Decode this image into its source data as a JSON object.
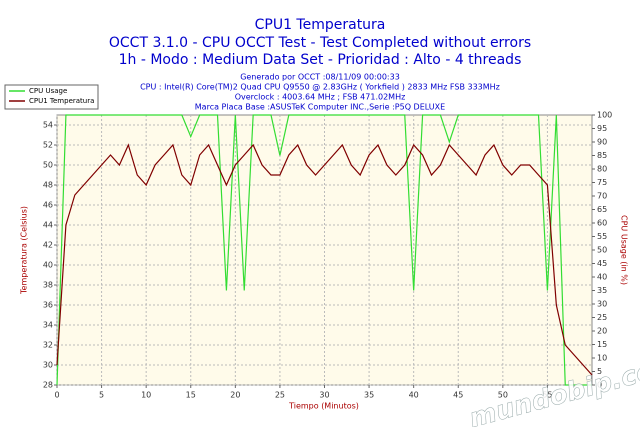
{
  "chart_data": {
    "type": "line",
    "title": "CPU1 Temperatura",
    "subtitle": [
      "OCCT 3.1.0 - CPU OCCT Test - Test Completed without errors",
      "1h - Modo : Medium Data Set - Prioridad : Alto - 4 threads"
    ],
    "info": [
      "Generado por OCCT :08/11/09 00:00:33",
      "CPU : Intel(R) Core(TM)2 Quad CPU Q9550 @ 2.83GHz ( Yorkfield ) 2833 MHz FSB 333MHz",
      "Overclock : 4003.64 MHz ; FSB 471.02MHz",
      "Marca Placa Base :ASUSTeK Computer INC.,Serie :P5Q DELUXE"
    ],
    "x_label": "Tiempo (Minutos)",
    "y_label": "Temperatura (Celsius)",
    "y2_label": "CPU Usage (in %)",
    "watermark": "mundobip.com",
    "x": [
      0,
      1,
      2,
      3,
      4,
      5,
      6,
      7,
      8,
      9,
      10,
      11,
      12,
      13,
      14,
      15,
      16,
      17,
      18,
      19,
      20,
      21,
      22,
      23,
      24,
      25,
      26,
      27,
      28,
      29,
      30,
      31,
      32,
      33,
      34,
      35,
      36,
      37,
      38,
      39,
      40,
      41,
      42,
      43,
      44,
      45,
      46,
      47,
      48,
      49,
      50,
      51,
      52,
      53,
      54,
      55,
      56,
      57,
      58,
      59,
      60
    ],
    "series": [
      {
        "name": "CPU Usage",
        "color": "#33dd33",
        "axis": "y2",
        "values": [
          0,
          100,
          100,
          100,
          100,
          100,
          100,
          100,
          100,
          100,
          100,
          100,
          100,
          100,
          100,
          92,
          100,
          100,
          100,
          35,
          100,
          35,
          100,
          100,
          100,
          85,
          100,
          100,
          100,
          100,
          100,
          100,
          100,
          100,
          100,
          100,
          100,
          100,
          100,
          100,
          35,
          100,
          100,
          100,
          90,
          100,
          100,
          100,
          100,
          100,
          100,
          100,
          100,
          100,
          100,
          35,
          100,
          0,
          0,
          0,
          0
        ]
      },
      {
        "name": "CPU1 Temperatura",
        "color": "#800000",
        "values": [
          30,
          44,
          47,
          48,
          49,
          50,
          51,
          50,
          52,
          49,
          48,
          50,
          51,
          52,
          49,
          48,
          51,
          52,
          50,
          48,
          50,
          51,
          52,
          50,
          49,
          49,
          51,
          52,
          50,
          49,
          50,
          51,
          52,
          50,
          49,
          51,
          52,
          50,
          49,
          50,
          52,
          51,
          49,
          50,
          52,
          51,
          50,
          49,
          51,
          52,
          50,
          49,
          50,
          50,
          49,
          48,
          36,
          32,
          31,
          30,
          29
        ]
      }
    ],
    "xlim": [
      0,
      60
    ],
    "xticks": [
      0,
      5,
      10,
      15,
      20,
      25,
      30,
      35,
      40,
      45,
      50,
      55
    ],
    "ylim": [
      28,
      55
    ],
    "yticks": [
      28,
      30,
      32,
      34,
      36,
      38,
      40,
      42,
      44,
      46,
      48,
      50,
      52,
      54
    ],
    "y2lim": [
      0,
      100
    ],
    "y2ticks": [
      0,
      5,
      10,
      15,
      20,
      25,
      30,
      35,
      40,
      45,
      50,
      55,
      60,
      65,
      70,
      75,
      80,
      85,
      90,
      95,
      100
    ],
    "grid": true,
    "legend": "top-left"
  }
}
